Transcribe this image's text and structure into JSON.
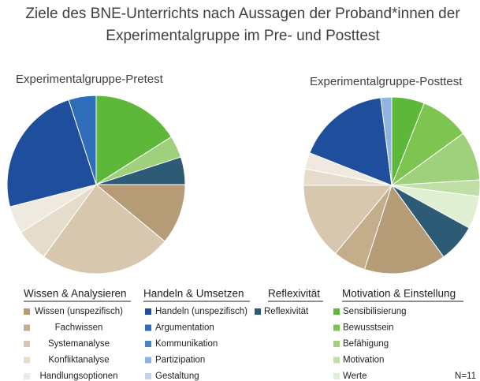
{
  "chart_data": {
    "type": "pie",
    "title": [
      "Ziele des BNE-Unterrichts nach Aussagen der Proband*innen der",
      "Experimentalgruppe im Pre- und Posttest"
    ],
    "categories": [
      "Sensibilisierung",
      "Bewusstsein",
      "Befähigung",
      "Motivation",
      "Werte",
      "Reflexivität",
      "Wissen  (unspezifisch)",
      "Fachwissen",
      "Systemanalyse",
      "Konfliktanalyse",
      "Handlungsoptionen",
      "Handeln (unspezifisch)",
      "Argumentation",
      "Kommunikation",
      "Partizipation",
      "Gestaltung"
    ],
    "colors": [
      "#5db83a",
      "#7dc451",
      "#9fd07c",
      "#bfdfa6",
      "#dfefd2",
      "#2d5a74",
      "#b59c76",
      "#c4ad8a",
      "#d7c7ae",
      "#e6dccb",
      "#efeadf",
      "#1f4e9c",
      "#2e6eb9",
      "#4a86c6",
      "#8fb4df",
      "#bfd5ee"
    ],
    "groups": [
      {
        "name": "Wissen & Analysieren",
        "members": [
          6,
          7,
          8,
          9,
          10
        ]
      },
      {
        "name": "Handeln & Umsetzen",
        "members": [
          11,
          12,
          13,
          14,
          15
        ]
      },
      {
        "name": "Reflexivität",
        "members": [
          5
        ]
      },
      {
        "name": "Motivation & Einstellung",
        "members": [
          0,
          1,
          2,
          3,
          4
        ]
      }
    ],
    "pies": [
      {
        "title": "Experimentalgruppe-Pretest",
        "values": [
          16,
          0,
          4,
          0,
          0,
          5,
          11,
          0,
          24,
          6,
          5,
          24,
          5,
          0,
          0,
          0
        ]
      },
      {
        "title": "Experimentalgruppe-Posttest",
        "values": [
          6,
          9,
          9,
          3,
          6,
          7,
          15,
          6,
          14,
          3,
          3,
          17,
          0,
          0,
          2,
          0
        ]
      }
    ],
    "annotation": "N=11"
  }
}
